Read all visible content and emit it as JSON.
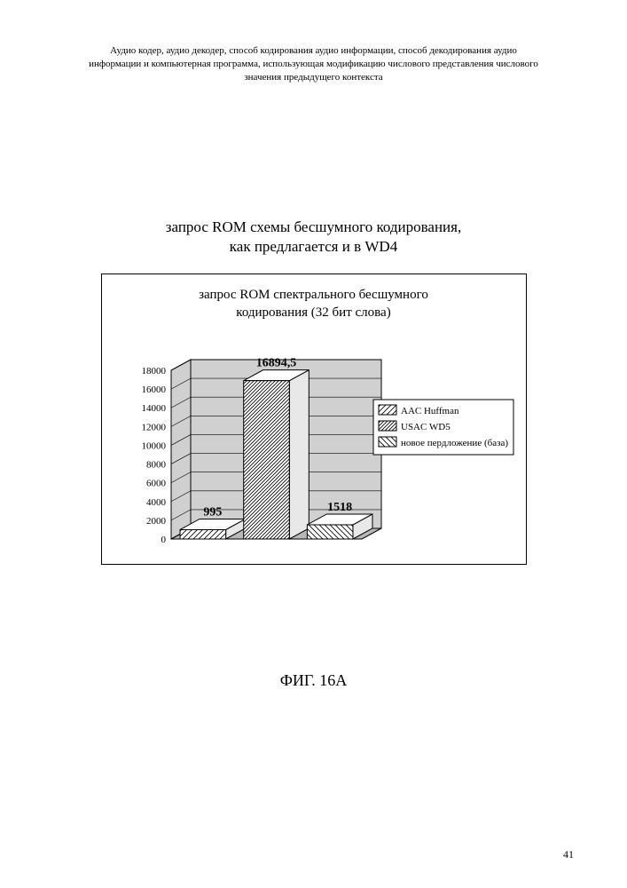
{
  "header": {
    "line1": "Аудио кодер, аудио декодер, способ кодирования аудио информации, способ декодирования аудио",
    "line2": "информации и компьютерная программа, использующая модификацию числового представления числового",
    "line3": "значения предыдущего контекста"
  },
  "figure_title": {
    "line1": "запрос ROM схемы бесшумного кодирования,",
    "line2": "как предлагается и в WD4"
  },
  "chart": {
    "title_line1": "запрос ROM спектрального бесшумного",
    "title_line2": "кодирования (32 бит слова)",
    "type": "bar-3d",
    "categories": [
      "AAC Huffman",
      "USAC WD5",
      "новое пердложение (база)"
    ],
    "values": [
      995,
      16894.5,
      1518
    ],
    "value_labels": [
      "995",
      "16894,5",
      "1518"
    ],
    "ymin": 0,
    "ymax": 18000,
    "ytick_step": 2000,
    "yticks": [
      0,
      2000,
      4000,
      6000,
      8000,
      10000,
      12000,
      14000,
      16000,
      18000
    ],
    "legend_items": [
      "AAC Huffman",
      "USAC WD5",
      "новое пердложение (база)"
    ],
    "colors": {
      "plot_bg": "#d0d0d0",
      "floor": "#b8b8b8",
      "grid": "#000000",
      "bar_fill": "#ffffff",
      "bar_stroke": "#000000",
      "text": "#000000",
      "legend_bg": "#ffffff"
    },
    "hatch": {
      "aac": "diag-up",
      "usac": "diag-up-dense",
      "new": "diag-down"
    },
    "fontsize_axis": 11,
    "fontsize_valuelabel": 14,
    "fontsize_legend": 11
  },
  "figure_label": "ФИГ. 16A",
  "page_number": "41"
}
